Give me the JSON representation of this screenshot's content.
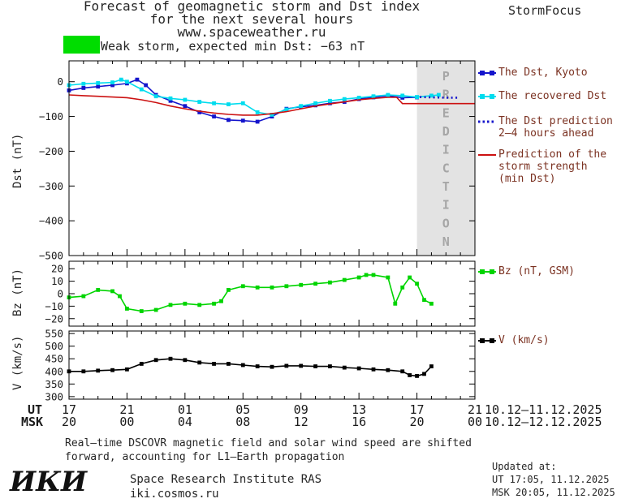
{
  "header": {
    "title_lines": [
      "Forecast of geomagnetic storm and Dst index",
      "for the next several hours",
      "www.spaceweather.ru"
    ],
    "brand": "StormFocus"
  },
  "storm_level": {
    "box_color": "#00dd00",
    "label": "Weak storm, expected min Dst: −63 nT"
  },
  "legend": {
    "text_color": "#7b3222",
    "items": [
      {
        "name": "dst-kyoto",
        "color": "#1414cc",
        "style": "solid",
        "marker": true,
        "lines": [
          "The Dst, Kyoto"
        ]
      },
      {
        "name": "recovered-dst",
        "color": "#00dcee",
        "style": "solid",
        "marker": true,
        "lines": [
          "The recovered Dst"
        ]
      },
      {
        "name": "dst-prediction",
        "color": "#1414cc",
        "style": "dotted",
        "marker": false,
        "lines": [
          "The Dst prediction",
          "2–4 hours ahead"
        ]
      },
      {
        "name": "storm-strength",
        "color": "#cc1111",
        "style": "solid",
        "marker": false,
        "lines": [
          "Prediction of the",
          "storm strength",
          "(min Dst)"
        ]
      },
      {
        "name": "bz",
        "color": "#00d400",
        "style": "solid",
        "marker": true,
        "lines": [
          "Bz (nT, GSM)"
        ]
      },
      {
        "name": "v",
        "color": "#000000",
        "style": "solid",
        "marker": true,
        "lines": [
          "V (km/s)"
        ]
      }
    ]
  },
  "xaxis": {
    "ut_label": "UT",
    "msk_label": "MSK",
    "tick_hours": [
      0,
      4,
      8,
      12,
      16,
      20,
      24,
      28
    ],
    "ut_ticks": [
      "17",
      "21",
      "01",
      "05",
      "09",
      "13",
      "17",
      "21"
    ],
    "msk_ticks": [
      "20",
      "00",
      "04",
      "08",
      "12",
      "16",
      "20",
      "00"
    ],
    "ut_range": "10.12–11.12.2025",
    "msk_range": "10.12–12.12.2025"
  },
  "chart_data": [
    {
      "type": "line",
      "name": "dst",
      "ylabel": "Dst (nT)",
      "ylim": [
        -500,
        60
      ],
      "yticks": [
        0,
        -100,
        -200,
        -300,
        -400,
        -500
      ],
      "ytick_labels": [
        "0",
        "−100",
        "−200",
        "−300",
        "−400",
        "−500"
      ],
      "xlim": [
        0,
        28
      ],
      "xmajor": 4,
      "xminor": 1,
      "zone": {
        "start": 24,
        "end": 28,
        "fill": "#e3e3e3",
        "label": "PREDICTION",
        "label_color": "#a6a6a6"
      },
      "series": [
        {
          "name": "The Dst, Kyoto",
          "color": "#1414cc",
          "style": "solid",
          "marker": true,
          "points": [
            [
              0,
              -25
            ],
            [
              1,
              -18
            ],
            [
              2,
              -14
            ],
            [
              3,
              -10
            ],
            [
              4,
              -5
            ],
            [
              4.7,
              6
            ],
            [
              5.3,
              -10
            ],
            [
              6,
              -38
            ],
            [
              7,
              -55
            ],
            [
              8,
              -70
            ],
            [
              9,
              -88
            ],
            [
              10,
              -100
            ],
            [
              11,
              -110
            ],
            [
              12,
              -112
            ],
            [
              13,
              -115
            ],
            [
              14,
              -100
            ],
            [
              15,
              -78
            ],
            [
              16,
              -72
            ],
            [
              17,
              -68
            ],
            [
              18,
              -62
            ],
            [
              19,
              -58
            ],
            [
              20,
              -50
            ],
            [
              21,
              -45
            ],
            [
              22,
              -40
            ],
            [
              23,
              -46
            ],
            [
              24,
              -45
            ]
          ]
        },
        {
          "name": "The recovered Dst",
          "color": "#00dcee",
          "style": "solid",
          "marker": true,
          "points": [
            [
              0,
              -10
            ],
            [
              1,
              -6
            ],
            [
              2,
              -4
            ],
            [
              3,
              -2
            ],
            [
              3.6,
              6
            ],
            [
              4,
              0
            ],
            [
              5,
              -22
            ],
            [
              6,
              -42
            ],
            [
              7,
              -48
            ],
            [
              8,
              -52
            ],
            [
              9,
              -58
            ],
            [
              10,
              -62
            ],
            [
              11,
              -65
            ],
            [
              12,
              -62
            ],
            [
              13,
              -88
            ],
            [
              14,
              -95
            ],
            [
              15,
              -80
            ],
            [
              16,
              -70
            ],
            [
              17,
              -62
            ],
            [
              18,
              -55
            ],
            [
              19,
              -50
            ],
            [
              20,
              -46
            ],
            [
              21,
              -42
            ],
            [
              22,
              -38
            ],
            [
              23,
              -40
            ],
            [
              24,
              -44
            ],
            [
              25,
              -40
            ],
            [
              25.5,
              -38
            ]
          ]
        },
        {
          "name": "The Dst prediction 2–4 hours ahead",
          "color": "#1414cc",
          "style": "dotted",
          "marker": false,
          "points": [
            [
              24.2,
              -44
            ],
            [
              25,
              -45
            ],
            [
              26,
              -46
            ],
            [
              26.8,
              -46
            ]
          ]
        },
        {
          "name": "Prediction of the storm strength (min Dst)",
          "color": "#cc1111",
          "style": "solid",
          "marker": false,
          "points": [
            [
              0,
              -38
            ],
            [
              1,
              -40
            ],
            [
              2,
              -42
            ],
            [
              3,
              -44
            ],
            [
              4,
              -46
            ],
            [
              5,
              -52
            ],
            [
              6,
              -60
            ],
            [
              7,
              -70
            ],
            [
              8,
              -78
            ],
            [
              9,
              -85
            ],
            [
              10,
              -90
            ],
            [
              11,
              -94
            ],
            [
              12,
              -96
            ],
            [
              13,
              -96
            ],
            [
              14,
              -92
            ],
            [
              15,
              -86
            ],
            [
              16,
              -78
            ],
            [
              17,
              -70
            ],
            [
              18,
              -64
            ],
            [
              19,
              -58
            ],
            [
              20,
              -52
            ],
            [
              21,
              -48
            ],
            [
              22,
              -45
            ],
            [
              22.6,
              -45
            ],
            [
              23,
              -63
            ],
            [
              28,
              -63
            ]
          ]
        }
      ]
    },
    {
      "type": "line",
      "name": "bz",
      "ylabel": "Bz (nT)",
      "ylim": [
        -26,
        26
      ],
      "yticks": [
        20,
        10,
        0,
        -10,
        -20
      ],
      "ytick_labels": [
        "20",
        "10",
        "0",
        "−10",
        "−20"
      ],
      "xlim": [
        0,
        28
      ],
      "xmajor": 4,
      "xminor": 1,
      "series": [
        {
          "name": "Bz (nT, GSM)",
          "color": "#00d400",
          "style": "solid",
          "marker": true,
          "points": [
            [
              0,
              -3
            ],
            [
              1,
              -2
            ],
            [
              2,
              3
            ],
            [
              3,
              2
            ],
            [
              3.5,
              -2
            ],
            [
              4,
              -12
            ],
            [
              5,
              -14
            ],
            [
              6,
              -13
            ],
            [
              7,
              -9
            ],
            [
              8,
              -8
            ],
            [
              9,
              -9
            ],
            [
              10,
              -8
            ],
            [
              10.5,
              -6
            ],
            [
              11,
              3
            ],
            [
              12,
              6
            ],
            [
              13,
              5
            ],
            [
              14,
              5
            ],
            [
              15,
              6
            ],
            [
              16,
              7
            ],
            [
              17,
              8
            ],
            [
              18,
              9
            ],
            [
              19,
              11
            ],
            [
              20,
              13
            ],
            [
              20.5,
              15
            ],
            [
              21,
              15
            ],
            [
              22,
              13
            ],
            [
              22.5,
              -8
            ],
            [
              23,
              5
            ],
            [
              23.5,
              13
            ],
            [
              24,
              8
            ],
            [
              24.5,
              -5
            ],
            [
              25,
              -8
            ]
          ]
        }
      ]
    },
    {
      "type": "line",
      "name": "v",
      "ylabel": "V (km/s)",
      "ylim": [
        290,
        560
      ],
      "yticks": [
        550,
        500,
        450,
        400,
        350,
        300
      ],
      "ytick_labels": [
        "550",
        "500",
        "450",
        "400",
        "350",
        "300"
      ],
      "xlim": [
        0,
        28
      ],
      "xmajor": 4,
      "xminor": 1,
      "series": [
        {
          "name": "V (km/s)",
          "color": "#000000",
          "style": "solid",
          "marker": true,
          "points": [
            [
              0,
              400
            ],
            [
              1,
              400
            ],
            [
              2,
              403
            ],
            [
              3,
              405
            ],
            [
              4,
              408
            ],
            [
              5,
              430
            ],
            [
              6,
              445
            ],
            [
              7,
              450
            ],
            [
              8,
              445
            ],
            [
              9,
              435
            ],
            [
              10,
              430
            ],
            [
              11,
              430
            ],
            [
              12,
              425
            ],
            [
              13,
              420
            ],
            [
              14,
              418
            ],
            [
              15,
              422
            ],
            [
              16,
              422
            ],
            [
              17,
              420
            ],
            [
              18,
              420
            ],
            [
              19,
              415
            ],
            [
              20,
              412
            ],
            [
              21,
              408
            ],
            [
              22,
              405
            ],
            [
              23,
              400
            ],
            [
              23.5,
              385
            ],
            [
              24,
              382
            ],
            [
              24.5,
              390
            ],
            [
              25,
              420
            ]
          ]
        }
      ]
    }
  ],
  "footer_note_lines": [
    "Real–time DSCOVR magnetic field and solar wind speed are shifted",
    "forward, accounting for L1–Earth propagation"
  ],
  "institute": {
    "logo": "ИКИ",
    "name": "Space Research Institute RAS",
    "site": "iki.cosmos.ru"
  },
  "updated": {
    "label": "Updated at:",
    "ut": "UT  17:05, 11.12.2025",
    "msk": "MSK 20:05, 11.12.2025"
  }
}
